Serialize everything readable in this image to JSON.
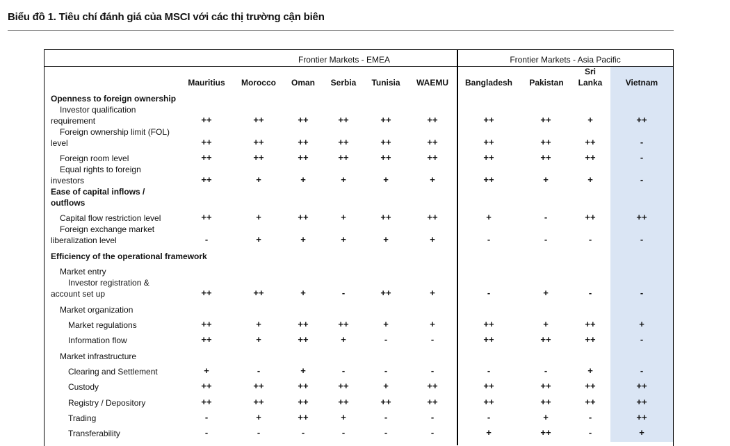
{
  "title": "Biểu đồ 1. Tiêu chí đánh giá của MSCI với các thị trường cận biên",
  "groups": {
    "emea": "Frontier Markets - EMEA",
    "apac": "Frontier Markets - Asia Pacific"
  },
  "columns": [
    "Mauritius",
    "Morocco",
    "Oman",
    "Serbia",
    "Tunisia",
    "WAEMU",
    "Bangladesh",
    "Pakistan",
    "Sri",
    "Vietnam"
  ],
  "columns_extra": {
    "sri_line2": "Lanka"
  },
  "rows": [
    {
      "label": [
        "Openness to foreign ownership"
      ],
      "section": true,
      "level": 0,
      "values": []
    },
    {
      "label": [
        "Investor qualification",
        "requirement"
      ],
      "level": 1,
      "values": [
        "++",
        "++",
        "++",
        "++",
        "++",
        "++",
        "++",
        "++",
        "+",
        "++"
      ]
    },
    {
      "label": [
        "Foreign ownership limit (FOL)",
        "level"
      ],
      "level": 1,
      "values": [
        "++",
        "++",
        "++",
        "++",
        "++",
        "++",
        "++",
        "++",
        "++",
        "-"
      ]
    },
    {
      "label": [
        "Foreign room level"
      ],
      "level": 1,
      "values": [
        "++",
        "++",
        "++",
        "++",
        "++",
        "++",
        "++",
        "++",
        "++",
        "-"
      ]
    },
    {
      "label": [
        "Equal rights to foreign",
        "investors"
      ],
      "level": 1,
      "values": [
        "++",
        "+",
        "+",
        "+",
        "+",
        "+",
        "++",
        "+",
        "+",
        "-"
      ]
    },
    {
      "label": [
        "Ease of capital inflows /",
        "outflows"
      ],
      "section": true,
      "level": 0,
      "values": []
    },
    {
      "label": [
        "Capital flow restriction level"
      ],
      "level": 1,
      "values": [
        "++",
        "+",
        "++",
        "+",
        "++",
        "++",
        "+",
        "-",
        "++",
        "++"
      ]
    },
    {
      "label": [
        "Foreign exchange market",
        "liberalization level"
      ],
      "level": 1,
      "values": [
        "-",
        "+",
        "+",
        "+",
        "+",
        "+",
        "-",
        "-",
        "-",
        "-"
      ]
    },
    {
      "label": [
        "Efficiency of the operational framework"
      ],
      "section": true,
      "level": 0,
      "values": []
    },
    {
      "label": [
        "Market entry"
      ],
      "level": 1,
      "values": []
    },
    {
      "label": [
        "Investor registration &",
        "account set up"
      ],
      "level": 2,
      "values": [
        "++",
        "++",
        "+",
        "-",
        "++",
        "+",
        "-",
        "+",
        "-",
        "-"
      ]
    },
    {
      "label": [
        "Market organization"
      ],
      "level": 1,
      "values": []
    },
    {
      "label": [
        "Market regulations"
      ],
      "level": 2,
      "values": [
        "++",
        "+",
        "++",
        "++",
        "+",
        "+",
        "++",
        "+",
        "++",
        "+"
      ]
    },
    {
      "label": [
        "Information flow"
      ],
      "level": 2,
      "values": [
        "++",
        "+",
        "++",
        "+",
        "-",
        "-",
        "++",
        "++",
        "++",
        "-"
      ]
    },
    {
      "label": [
        "Market infrastructure"
      ],
      "level": 1,
      "values": []
    },
    {
      "label": [
        "Clearing and Settlement"
      ],
      "level": 2,
      "values": [
        "+",
        "-",
        "+",
        "-",
        "-",
        "-",
        "-",
        "-",
        "+",
        "-"
      ]
    },
    {
      "label": [
        "Custody"
      ],
      "level": 2,
      "values": [
        "++",
        "++",
        "++",
        "++",
        "+",
        "++",
        "++",
        "++",
        "++",
        "++"
      ]
    },
    {
      "label": [
        "Registry / Depository"
      ],
      "level": 2,
      "values": [
        "++",
        "++",
        "++",
        "++",
        "++",
        "++",
        "++",
        "++",
        "++",
        "++"
      ]
    },
    {
      "label": [
        "Trading"
      ],
      "level": 2,
      "values": [
        "-",
        "+",
        "++",
        "+",
        "-",
        "-",
        "-",
        "+",
        "-",
        "++"
      ]
    },
    {
      "label": [
        "Transferability"
      ],
      "level": 2,
      "values": [
        "-",
        "-",
        "-",
        "-",
        "-",
        "-",
        "+",
        "++",
        "-",
        "+"
      ]
    }
  ]
}
